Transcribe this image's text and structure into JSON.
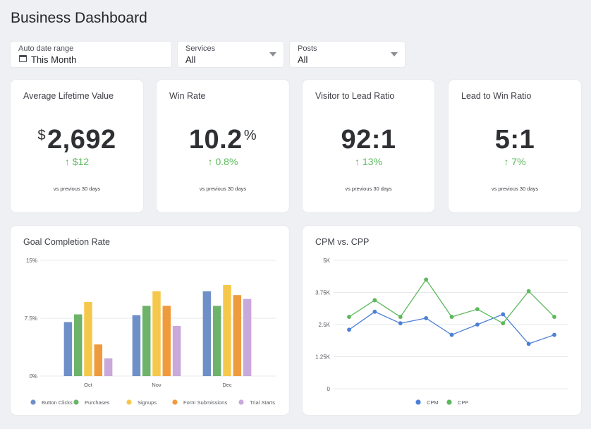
{
  "header": {
    "title": "Business Dashboard"
  },
  "filters": {
    "date": {
      "label": "Auto date range",
      "value": "This Month"
    },
    "services": {
      "label": "Services",
      "value": "All"
    },
    "posts": {
      "label": "Posts",
      "value": "All"
    }
  },
  "kpis": [
    {
      "title": "Average Lifetime Value",
      "prefix": "$",
      "value": "2,692",
      "suffix": "",
      "change": "↑ $12",
      "compare": "vs previous 30 days"
    },
    {
      "title": "Win Rate",
      "prefix": "",
      "value": "10.2",
      "suffix": "%",
      "change": "↑ 0.8%",
      "compare": "vs previous 30 days"
    },
    {
      "title": "Visitor to Lead Ratio",
      "prefix": "",
      "value": "92:1",
      "suffix": "",
      "change": "↑ 13%",
      "compare": "vs previous 30 days"
    },
    {
      "title": "Lead to Win Ratio",
      "prefix": "",
      "value": "5:1",
      "suffix": "",
      "change": "↑ 7%",
      "compare": "vs previous 30 days"
    }
  ],
  "colors": {
    "positive": "#5cb85c",
    "button_clicks": "#6f8fc9",
    "purchases": "#6db36a",
    "signups": "#f5c84c",
    "form_submissions": "#f09a3e",
    "trial_starts": "#c9a8dc",
    "cpm": "#4c7fd6",
    "cpp": "#5cb85c"
  },
  "chart_data": [
    {
      "type": "bar",
      "title": "Goal Completion Rate",
      "categories": [
        "Oct",
        "Nov",
        "Dec"
      ],
      "series": [
        {
          "name": "Button Clicks",
          "values": [
            7.0,
            7.9,
            11.0
          ]
        },
        {
          "name": "Purchases",
          "values": [
            8.0,
            9.1,
            9.1
          ]
        },
        {
          "name": "Signups",
          "values": [
            9.6,
            11.0,
            11.8
          ]
        },
        {
          "name": "Form Submissions",
          "values": [
            4.1,
            9.1,
            10.5
          ]
        },
        {
          "name": "Trial Starts",
          "values": [
            2.3,
            6.5,
            10.0
          ]
        }
      ],
      "yticks": [
        "15%",
        "7.5%",
        "0%"
      ],
      "ylim": [
        0,
        15
      ],
      "grid": true,
      "legend": "bottom"
    },
    {
      "type": "line",
      "title": "CPM vs. CPP",
      "x_count": 9,
      "series": [
        {
          "name": "CPM",
          "values": [
            2.3,
            3.0,
            2.55,
            2.75,
            2.1,
            2.5,
            2.9,
            1.75,
            2.1
          ]
        },
        {
          "name": "CPP",
          "values": [
            2.8,
            3.45,
            2.8,
            4.25,
            2.8,
            3.1,
            2.55,
            3.8,
            2.8
          ]
        }
      ],
      "yticks": [
        "5K",
        "3.75K",
        "2.5K",
        "1.25K",
        "0"
      ],
      "ylim": [
        0,
        5
      ],
      "grid": true,
      "legend": "bottom"
    }
  ]
}
